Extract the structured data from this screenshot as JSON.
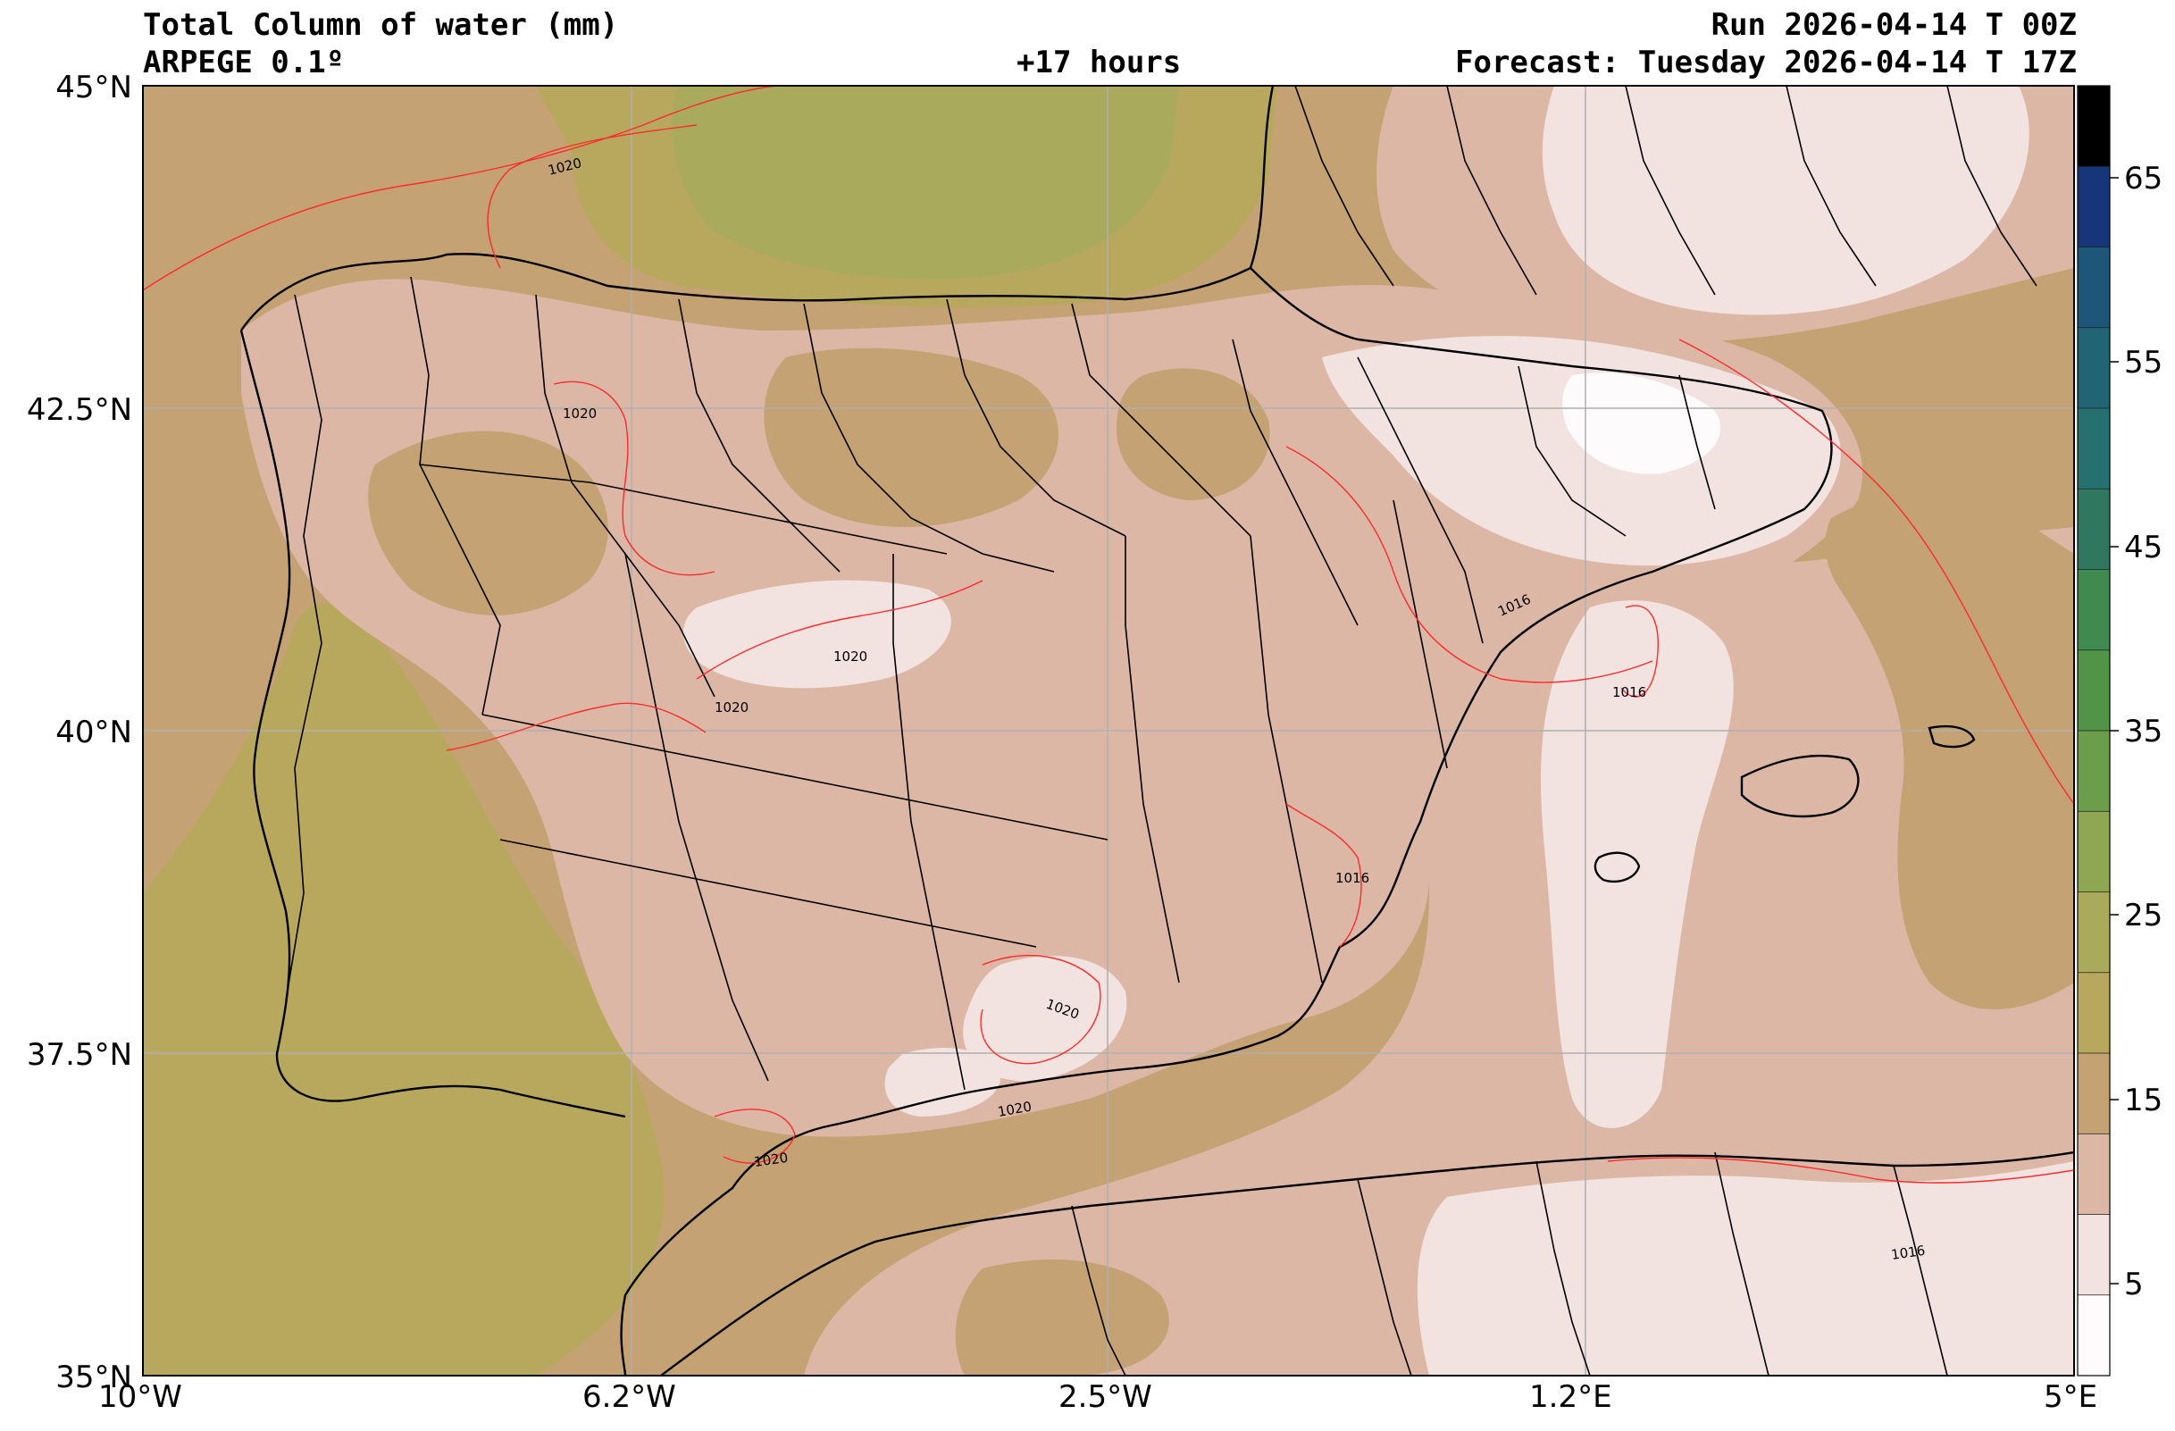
{
  "header": {
    "title": "Total Column of water (mm)",
    "model": "ARPEGE 0.1º",
    "lead": "+17 hours",
    "run": "Run 2026-04-14 T 00Z",
    "forecast": "Forecast: Tuesday 2026-04-14 T 17Z"
  },
  "axes": {
    "lon_ticks": [
      "10°W",
      "6.2°W",
      "2.5°W",
      "1.2°E",
      "5°E"
    ],
    "lat_ticks": [
      "45°N",
      "42.5°N",
      "40°N",
      "37.5°N",
      "35°N"
    ],
    "lon_range": [
      -10,
      5
    ],
    "lat_range": [
      35,
      45
    ],
    "grid": true
  },
  "colorbar": {
    "labels": [
      "65",
      "55",
      "45",
      "35",
      "25",
      "15",
      "5"
    ],
    "colors": [
      "#fdfbfc",
      "#f2e2e0",
      "#dcb7a6",
      "#c4a274",
      "#b7a85d",
      "#a9aa5c",
      "#8fa752",
      "#6c9d4b",
      "#519447",
      "#418a4f",
      "#30775f",
      "#277070",
      "#216474",
      "#1d5678",
      "#17367a",
      "#000000"
    ]
  },
  "isobars": [
    "1020",
    "1020",
    "1020",
    "1020",
    "1020",
    "1020",
    "1020",
    "1016",
    "1016",
    "1016",
    "1016"
  ],
  "colors": {
    "ocean": "#c4a274",
    "land_mid": "#dcb7a6",
    "land_low": "#f2e2e0",
    "land_min": "#fdfbfc",
    "green_mid": "#b7a85d",
    "green_dark": "#a9aa5c",
    "green_deep": "#8fa752",
    "isobar": "#ff2a2a"
  }
}
